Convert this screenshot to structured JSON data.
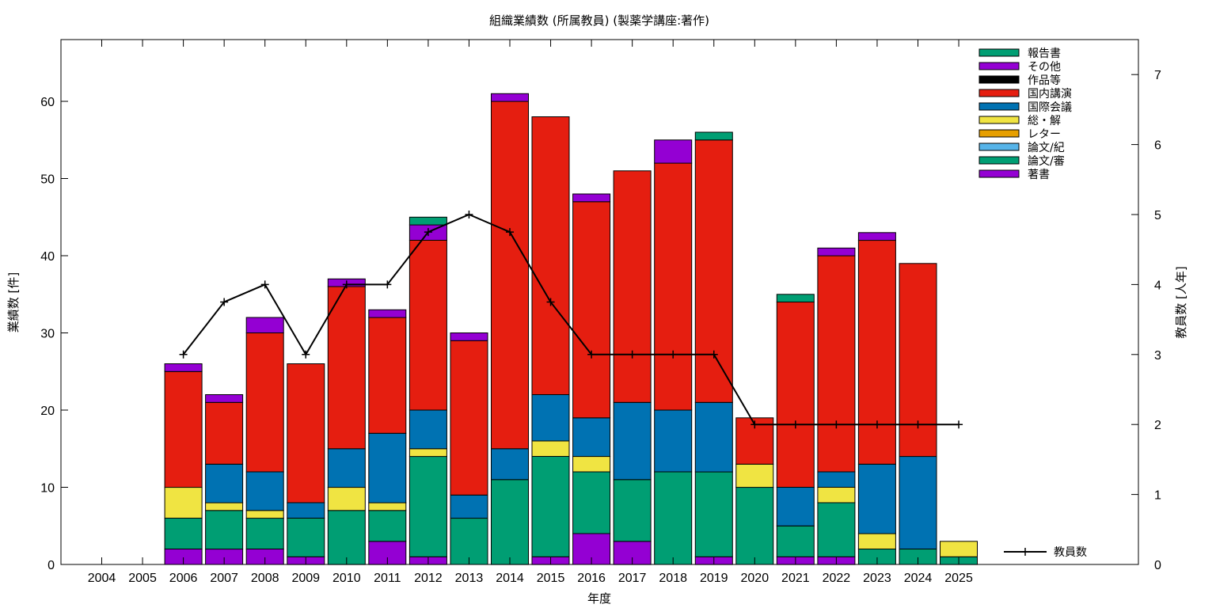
{
  "chart_data": {
    "type": "bar",
    "title": "組織業績数 (所属教員) (製薬学講座:著作)",
    "xlabel": "年度",
    "ylabel": "業績数 [件]",
    "y2label": "教員数 [人年]",
    "categories": [
      "2004",
      "2005",
      "2006",
      "2007",
      "2008",
      "2009",
      "2010",
      "2011",
      "2012",
      "2013",
      "2014",
      "2015",
      "2016",
      "2017",
      "2018",
      "2019",
      "2020",
      "2021",
      "2022",
      "2023",
      "2024",
      "2025"
    ],
    "ylim": [
      0,
      68
    ],
    "yticks": [
      0,
      10,
      20,
      30,
      40,
      50,
      60
    ],
    "y2lim": [
      0,
      7.5
    ],
    "y2ticks": [
      0,
      1,
      2,
      3,
      4,
      5,
      6,
      7
    ],
    "stacked": true,
    "series": [
      {
        "name": "著書",
        "color": "#9400d3",
        "values": [
          0,
          0,
          2,
          2,
          2,
          1,
          0,
          3,
          1,
          0,
          0,
          1,
          4,
          3,
          0,
          1,
          0,
          1,
          1,
          0,
          0,
          0
        ]
      },
      {
        "name": "論文/審",
        "color": "#009e73",
        "values": [
          0,
          0,
          4,
          5,
          4,
          5,
          7,
          4,
          13,
          6,
          11,
          13,
          8,
          8,
          12,
          11,
          10,
          4,
          7,
          2,
          2,
          1
        ]
      },
      {
        "name": "論文/紀",
        "color": "#56b4e9",
        "values": [
          0,
          0,
          0,
          0,
          0,
          0,
          0,
          0,
          0,
          0,
          0,
          0,
          0,
          0,
          0,
          0,
          0,
          0,
          0,
          0,
          0,
          0
        ]
      },
      {
        "name": "レター",
        "color": "#e69f00",
        "values": [
          0,
          0,
          0,
          0,
          0,
          0,
          0,
          0,
          0,
          0,
          0,
          0,
          0,
          0,
          0,
          0,
          0,
          0,
          0,
          0,
          0,
          0
        ]
      },
      {
        "name": "総・解",
        "color": "#f0e442",
        "values": [
          0,
          0,
          4,
          1,
          1,
          0,
          3,
          1,
          1,
          0,
          0,
          2,
          2,
          0,
          0,
          0,
          3,
          0,
          2,
          2,
          0,
          2
        ]
      },
      {
        "name": "国際会議",
        "color": "#0072b2",
        "values": [
          0,
          0,
          0,
          5,
          5,
          2,
          5,
          9,
          5,
          3,
          4,
          6,
          5,
          10,
          8,
          9,
          0,
          5,
          2,
          9,
          12,
          0
        ]
      },
      {
        "name": "国内講演",
        "color": "#e51e10",
        "values": [
          0,
          0,
          15,
          8,
          18,
          18,
          21,
          15,
          22,
          20,
          45,
          36,
          28,
          30,
          32,
          34,
          6,
          24,
          28,
          29,
          25,
          0
        ]
      },
      {
        "name": "作品等",
        "color": "#000000",
        "values": [
          0,
          0,
          0,
          0,
          0,
          0,
          0,
          0,
          0,
          0,
          0,
          0,
          0,
          0,
          0,
          0,
          0,
          0,
          0,
          0,
          0,
          0
        ]
      },
      {
        "name": "その他",
        "color": "#9400d3",
        "values": [
          0,
          0,
          1,
          1,
          2,
          0,
          1,
          1,
          2,
          1,
          1,
          0,
          1,
          0,
          3,
          0,
          0,
          0,
          1,
          1,
          0,
          0
        ]
      },
      {
        "name": "報告書",
        "color": "#009e73",
        "values": [
          0,
          0,
          0,
          0,
          0,
          0,
          0,
          0,
          1,
          0,
          0,
          0,
          0,
          0,
          0,
          1,
          0,
          1,
          0,
          0,
          0,
          0
        ]
      }
    ],
    "line_series": {
      "name": "教員数",
      "axis": "y2",
      "color": "#000000",
      "x": [
        "2006",
        "2007",
        "2008",
        "2009",
        "2010",
        "2011",
        "2012",
        "2013",
        "2014",
        "2015",
        "2016",
        "2017",
        "2018",
        "2019",
        "2020",
        "2021",
        "2022",
        "2023",
        "2024",
        "2025"
      ],
      "values": [
        3,
        3.75,
        4,
        3,
        4,
        4,
        4.75,
        5,
        4.75,
        3.75,
        3,
        3,
        3,
        3,
        2,
        2,
        2,
        2,
        2,
        2
      ]
    },
    "legend_position": "top-right",
    "grid": false
  }
}
